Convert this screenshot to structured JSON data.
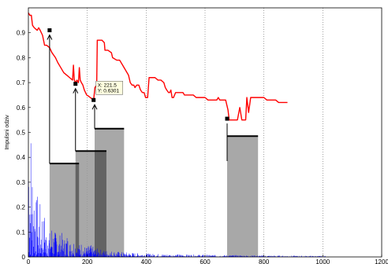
{
  "chart_data": {
    "type": "line",
    "title": "",
    "xlabel": "",
    "ylabel": "Impulsni odziv",
    "xlim": [
      0,
      1200
    ],
    "ylim": [
      0,
      1
    ],
    "x_ticks": [
      "0",
      "200",
      "400",
      "600",
      "800",
      "1000",
      "1200"
    ],
    "y_ticks": [
      "0",
      "0.1",
      "0.2",
      "0.3",
      "0.4",
      "0.5",
      "0.6",
      "0.7",
      "0.8",
      "0.9"
    ],
    "grid": "vertical dotted",
    "colors": {
      "impulse": "#0000ff",
      "envelope": "#ff0000",
      "region": "#999999",
      "region_dark": "#555555"
    },
    "series": [
      {
        "type": "impulse",
        "x_end": 1010,
        "points": [
          [
            0,
            0.95
          ],
          [
            2,
            0.55
          ],
          [
            4,
            0.78
          ],
          [
            6,
            0.4
          ],
          [
            8,
            0.62
          ],
          [
            10,
            0.35
          ],
          [
            12,
            0.5
          ],
          [
            15,
            0.3
          ],
          [
            18,
            0.42
          ],
          [
            21,
            0.26
          ],
          [
            24,
            0.36
          ],
          [
            27,
            0.22
          ],
          [
            30,
            0.3
          ],
          [
            34,
            0.18
          ],
          [
            38,
            0.27
          ],
          [
            42,
            0.15
          ],
          [
            46,
            0.24
          ],
          [
            50,
            0.14
          ],
          [
            55,
            0.2
          ],
          [
            60,
            0.12
          ],
          [
            66,
            0.17
          ],
          [
            72,
            0.1
          ],
          [
            80,
            0.15
          ],
          [
            88,
            0.09
          ],
          [
            96,
            0.13
          ],
          [
            104,
            0.08
          ],
          [
            112,
            0.11
          ],
          [
            120,
            0.07
          ],
          [
            130,
            0.1
          ],
          [
            140,
            0.06
          ],
          [
            150,
            0.08
          ],
          [
            160,
            0.07
          ],
          [
            170,
            0.05
          ],
          [
            180,
            0.06
          ],
          [
            195,
            0.04
          ],
          [
            210,
            0.05
          ],
          [
            230,
            0.035
          ],
          [
            250,
            0.03
          ],
          [
            280,
            0.025
          ],
          [
            320,
            0.02
          ],
          [
            380,
            0.015
          ],
          [
            450,
            0.012
          ],
          [
            550,
            0.01
          ],
          [
            650,
            0.008
          ],
          [
            800,
            0.006
          ],
          [
            1010,
            0.004
          ]
        ]
      },
      {
        "type": "envelope",
        "points": [
          [
            0,
            0.98
          ],
          [
            5,
            0.97
          ],
          [
            10,
            0.97
          ],
          [
            14,
            0.93
          ],
          [
            20,
            0.92
          ],
          [
            30,
            0.91
          ],
          [
            35,
            0.92
          ],
          [
            40,
            0.91
          ],
          [
            48,
            0.89
          ],
          [
            55,
            0.85
          ],
          [
            62,
            0.85
          ],
          [
            72,
            0.84
          ],
          [
            80,
            0.82
          ],
          [
            92,
            0.8
          ],
          [
            100,
            0.78
          ],
          [
            110,
            0.76
          ],
          [
            120,
            0.74
          ],
          [
            130,
            0.73
          ],
          [
            140,
            0.72
          ],
          [
            150,
            0.71
          ],
          [
            153,
            0.77
          ],
          [
            156,
            0.71
          ],
          [
            160,
            0.7
          ],
          [
            165,
            0.71
          ],
          [
            170,
            0.7
          ],
          [
            173,
            0.76
          ],
          [
            176,
            0.71
          ],
          [
            180,
            0.7
          ],
          [
            185,
            0.69
          ],
          [
            190,
            0.67
          ],
          [
            198,
            0.65
          ],
          [
            205,
            0.645
          ],
          [
            210,
            0.64
          ],
          [
            221.5,
            0.6301
          ],
          [
            226,
            0.68
          ],
          [
            232,
            0.69
          ],
          [
            234,
            0.87
          ],
          [
            250,
            0.87
          ],
          [
            258,
            0.86
          ],
          [
            260,
            0.83
          ],
          [
            270,
            0.83
          ],
          [
            282,
            0.82
          ],
          [
            286,
            0.8
          ],
          [
            300,
            0.79
          ],
          [
            310,
            0.79
          ],
          [
            320,
            0.77
          ],
          [
            330,
            0.75
          ],
          [
            340,
            0.73
          ],
          [
            346,
            0.7
          ],
          [
            352,
            0.69
          ],
          [
            358,
            0.69
          ],
          [
            362,
            0.68
          ],
          [
            368,
            0.69
          ],
          [
            375,
            0.69
          ],
          [
            381,
            0.67
          ],
          [
            387,
            0.66
          ],
          [
            393,
            0.66
          ],
          [
            398,
            0.64
          ],
          [
            405,
            0.64
          ],
          [
            410,
            0.72
          ],
          [
            430,
            0.72
          ],
          [
            440,
            0.71
          ],
          [
            450,
            0.71
          ],
          [
            460,
            0.7
          ],
          [
            465,
            0.68
          ],
          [
            470,
            0.67
          ],
          [
            476,
            0.66
          ],
          [
            480,
            0.66
          ],
          [
            484,
            0.67
          ],
          [
            488,
            0.64
          ],
          [
            493,
            0.64
          ],
          [
            500,
            0.66
          ],
          [
            525,
            0.66
          ],
          [
            530,
            0.65
          ],
          [
            560,
            0.65
          ],
          [
            570,
            0.64
          ],
          [
            600,
            0.64
          ],
          [
            610,
            0.63
          ],
          [
            640,
            0.63
          ],
          [
            645,
            0.64
          ],
          [
            650,
            0.63
          ],
          [
            670,
            0.63
          ],
          [
            678,
            0.59
          ],
          [
            682,
            0.55
          ],
          [
            700,
            0.55
          ],
          [
            710,
            0.55
          ],
          [
            718,
            0.6
          ],
          [
            725,
            0.55
          ],
          [
            738,
            0.55
          ],
          [
            742,
            0.64
          ],
          [
            748,
            0.58
          ],
          [
            755,
            0.64
          ],
          [
            800,
            0.64
          ],
          [
            810,
            0.63
          ],
          [
            840,
            0.63
          ],
          [
            850,
            0.62
          ],
          [
            880,
            0.62
          ]
        ]
      }
    ],
    "markers": [
      [
        72,
        0.91
      ],
      [
        160,
        0.695
      ],
      [
        221.5,
        0.6301
      ],
      [
        675,
        0.555
      ]
    ],
    "regions": [
      {
        "x0": 72,
        "x1": 172,
        "level": 0.375,
        "marker_y": 0.91
      },
      {
        "x0": 160,
        "x1": 265,
        "level": 0.425,
        "marker_y": 0.695
      },
      {
        "x0": 225,
        "x1": 325,
        "level": 0.515,
        "marker_y": 0.6301
      },
      {
        "x0": 675,
        "x1": 780,
        "level": 0.485,
        "marker_y": 0.555,
        "stem_bottom": 0.385
      }
    ],
    "datatip": {
      "x": "X: 221.5",
      "y": "Y: 0.6301"
    }
  }
}
